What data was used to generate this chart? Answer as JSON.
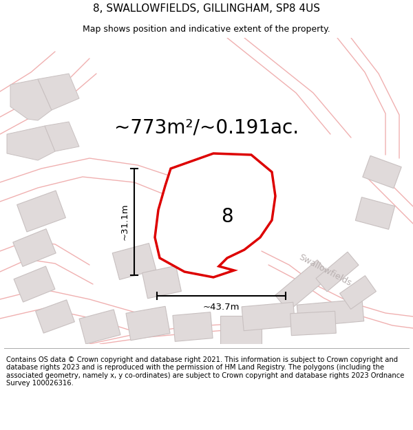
{
  "title": "8, SWALLOWFIELDS, GILLINGHAM, SP8 4US",
  "subtitle": "Map shows position and indicative extent of the property.",
  "area_text": "~773m²/~0.191ac.",
  "label_8": "8",
  "dim_width": "~43.7m",
  "dim_height": "~31.1m",
  "street_label": "Swallowfields",
  "footer": "Contains OS data © Crown copyright and database right 2021. This information is subject to Crown copyright and database rights 2023 and is reproduced with the permission of HM Land Registry. The polygons (including the associated geometry, namely x, y co-ordinates) are subject to Crown copyright and database rights 2023 Ordnance Survey 100026316.",
  "bg_color": "#ffffff",
  "map_bg": "#ffffff",
  "road_color": "#f0b0b0",
  "road_lw": 1.0,
  "building_face": "#e0dada",
  "building_edge": "#c8c0c0",
  "plot_color": "#dd0000",
  "plot_lw": 2.5,
  "title_fontsize": 11,
  "subtitle_fontsize": 9,
  "area_fontsize": 20,
  "label_fontsize": 20,
  "dim_fontsize": 9.5,
  "street_fontsize": 9,
  "footer_fontsize": 7.2,
  "footer_sep_color": "#aaaaaa"
}
